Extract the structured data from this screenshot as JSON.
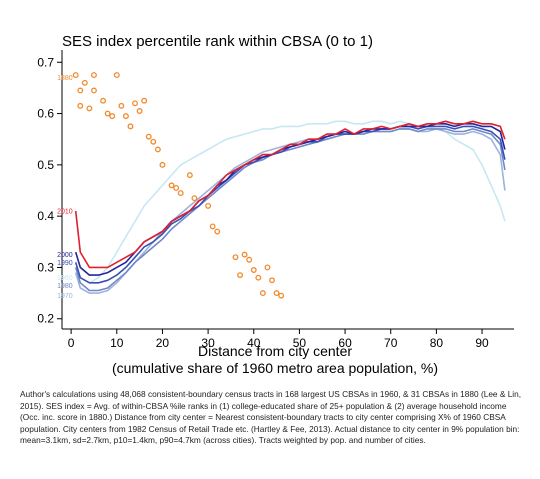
{
  "chart_data": {
    "type": "line",
    "title": "SES index percentile rank within CBSA (0 to 1)",
    "xlabel": "Distance from city center",
    "xlabel_sub": "(cumulative share of 1960 metro area population, %)",
    "ylabel": "",
    "xlim": [
      -2,
      97
    ],
    "ylim": [
      0.18,
      0.72
    ],
    "xticks": [
      0,
      10,
      20,
      30,
      40,
      50,
      60,
      70,
      80,
      90
    ],
    "yticks": [
      0.2,
      0.3,
      0.4,
      0.5,
      0.6,
      0.7
    ],
    "grid": false,
    "legend": "inline labels at left",
    "series": [
      {
        "name": "1880",
        "kind": "scatter",
        "color": "#f08a2c",
        "label_y": 0.67,
        "x": [
          1,
          2,
          2,
          3,
          4,
          5,
          5,
          7,
          8,
          9,
          10,
          11,
          12,
          13,
          14,
          15,
          16,
          17,
          18,
          19,
          20,
          22,
          23,
          24,
          26,
          27,
          30,
          31,
          32,
          36,
          37,
          38,
          39,
          40,
          41,
          42,
          43,
          44,
          45,
          46
        ],
        "y": [
          0.675,
          0.645,
          0.615,
          0.66,
          0.61,
          0.675,
          0.645,
          0.625,
          0.6,
          0.595,
          0.675,
          0.615,
          0.595,
          0.575,
          0.62,
          0.605,
          0.625,
          0.555,
          0.545,
          0.53,
          0.5,
          0.46,
          0.455,
          0.445,
          0.48,
          0.435,
          0.42,
          0.38,
          0.37,
          0.32,
          0.285,
          0.325,
          0.315,
          0.295,
          0.28,
          0.25,
          0.3,
          0.275,
          0.25,
          0.245
        ]
      },
      {
        "name": "2010",
        "kind": "line",
        "color": "#e0202c",
        "label_y": 0.41,
        "x": [
          1,
          2,
          4,
          6,
          8,
          10,
          12,
          14,
          16,
          18,
          20,
          22,
          24,
          26,
          28,
          30,
          32,
          34,
          36,
          38,
          40,
          42,
          44,
          46,
          48,
          50,
          52,
          54,
          56,
          58,
          60,
          62,
          64,
          66,
          68,
          70,
          72,
          74,
          76,
          78,
          80,
          82,
          84,
          86,
          88,
          90,
          92,
          94,
          95
        ],
        "y": [
          0.41,
          0.33,
          0.3,
          0.3,
          0.3,
          0.31,
          0.32,
          0.33,
          0.35,
          0.36,
          0.37,
          0.39,
          0.4,
          0.41,
          0.43,
          0.44,
          0.46,
          0.48,
          0.49,
          0.5,
          0.51,
          0.52,
          0.52,
          0.53,
          0.54,
          0.54,
          0.55,
          0.55,
          0.56,
          0.56,
          0.57,
          0.56,
          0.57,
          0.57,
          0.575,
          0.57,
          0.575,
          0.58,
          0.575,
          0.58,
          0.58,
          0.585,
          0.58,
          0.58,
          0.585,
          0.58,
          0.58,
          0.575,
          0.55
        ]
      },
      {
        "name": "2000",
        "kind": "line",
        "color": "#25259a",
        "label_y": 0.325,
        "x": [
          1,
          2,
          4,
          6,
          8,
          10,
          12,
          14,
          16,
          18,
          20,
          22,
          24,
          26,
          28,
          30,
          32,
          34,
          36,
          38,
          40,
          42,
          44,
          46,
          48,
          50,
          52,
          54,
          56,
          58,
          60,
          62,
          64,
          66,
          68,
          70,
          72,
          74,
          76,
          78,
          80,
          82,
          84,
          86,
          88,
          90,
          92,
          94,
          95
        ],
        "y": [
          0.33,
          0.3,
          0.285,
          0.285,
          0.29,
          0.3,
          0.31,
          0.33,
          0.35,
          0.36,
          0.37,
          0.39,
          0.4,
          0.41,
          0.43,
          0.44,
          0.46,
          0.47,
          0.49,
          0.5,
          0.51,
          0.515,
          0.52,
          0.53,
          0.535,
          0.54,
          0.545,
          0.55,
          0.555,
          0.56,
          0.565,
          0.56,
          0.565,
          0.57,
          0.57,
          0.57,
          0.575,
          0.575,
          0.575,
          0.575,
          0.58,
          0.58,
          0.575,
          0.58,
          0.58,
          0.575,
          0.575,
          0.565,
          0.53
        ]
      },
      {
        "name": "1990",
        "kind": "line",
        "color": "#3a4fb5",
        "label_y": 0.31,
        "x": [
          1,
          2,
          4,
          6,
          8,
          10,
          12,
          14,
          16,
          18,
          20,
          22,
          24,
          26,
          28,
          30,
          32,
          34,
          36,
          38,
          40,
          42,
          44,
          46,
          48,
          50,
          52,
          54,
          56,
          58,
          60,
          62,
          64,
          66,
          68,
          70,
          72,
          74,
          76,
          78,
          80,
          82,
          84,
          86,
          88,
          90,
          92,
          94,
          95
        ],
        "y": [
          0.31,
          0.28,
          0.27,
          0.27,
          0.275,
          0.285,
          0.3,
          0.32,
          0.34,
          0.35,
          0.365,
          0.385,
          0.395,
          0.41,
          0.42,
          0.44,
          0.455,
          0.47,
          0.485,
          0.5,
          0.505,
          0.515,
          0.52,
          0.525,
          0.535,
          0.54,
          0.545,
          0.545,
          0.555,
          0.56,
          0.56,
          0.56,
          0.565,
          0.565,
          0.57,
          0.57,
          0.575,
          0.575,
          0.57,
          0.575,
          0.575,
          0.575,
          0.57,
          0.575,
          0.575,
          0.57,
          0.565,
          0.55,
          0.51
        ]
      },
      {
        "name": "1980",
        "kind": "line",
        "color": "#6f88c8",
        "label_y": 0.265,
        "x": [
          1,
          2,
          4,
          6,
          8,
          10,
          12,
          14,
          16,
          18,
          20,
          22,
          24,
          26,
          28,
          30,
          32,
          34,
          36,
          38,
          40,
          42,
          44,
          46,
          48,
          50,
          52,
          54,
          56,
          58,
          60,
          62,
          64,
          66,
          68,
          70,
          72,
          74,
          76,
          78,
          80,
          82,
          84,
          86,
          88,
          90,
          92,
          94,
          95
        ],
        "y": [
          0.3,
          0.27,
          0.255,
          0.255,
          0.26,
          0.275,
          0.29,
          0.31,
          0.325,
          0.34,
          0.355,
          0.375,
          0.39,
          0.405,
          0.42,
          0.435,
          0.45,
          0.465,
          0.48,
          0.495,
          0.505,
          0.51,
          0.52,
          0.525,
          0.53,
          0.535,
          0.54,
          0.545,
          0.55,
          0.555,
          0.56,
          0.56,
          0.56,
          0.565,
          0.565,
          0.565,
          0.57,
          0.57,
          0.565,
          0.57,
          0.57,
          0.57,
          0.565,
          0.565,
          0.57,
          0.565,
          0.56,
          0.54,
          0.49
        ]
      },
      {
        "name": "1970",
        "kind": "line",
        "color": "#9db3dc",
        "label_y": 0.245,
        "x": [
          1,
          2,
          4,
          6,
          8,
          10,
          12,
          14,
          16,
          18,
          20,
          22,
          24,
          26,
          28,
          30,
          32,
          34,
          36,
          38,
          40,
          42,
          44,
          46,
          48,
          50,
          52,
          54,
          56,
          58,
          60,
          62,
          64,
          66,
          68,
          70,
          72,
          74,
          76,
          78,
          80,
          82,
          84,
          86,
          88,
          90,
          92,
          94,
          95
        ],
        "y": [
          0.29,
          0.26,
          0.25,
          0.25,
          0.255,
          0.27,
          0.29,
          0.31,
          0.33,
          0.35,
          0.37,
          0.39,
          0.405,
          0.42,
          0.435,
          0.45,
          0.465,
          0.48,
          0.495,
          0.505,
          0.515,
          0.525,
          0.53,
          0.535,
          0.54,
          0.545,
          0.55,
          0.55,
          0.555,
          0.56,
          0.56,
          0.56,
          0.565,
          0.565,
          0.565,
          0.565,
          0.57,
          0.57,
          0.565,
          0.565,
          0.57,
          0.565,
          0.56,
          0.56,
          0.565,
          0.56,
          0.55,
          0.52,
          0.45
        ]
      },
      {
        "name": "1960",
        "kind": "line",
        "color": "#c6e8f4",
        "label_y": 0.28,
        "x": [
          1,
          2,
          4,
          6,
          8,
          10,
          12,
          14,
          16,
          18,
          20,
          22,
          24,
          26,
          28,
          30,
          32,
          34,
          36,
          38,
          40,
          42,
          44,
          46,
          48,
          50,
          52,
          54,
          56,
          58,
          60,
          62,
          64,
          66,
          68,
          70,
          72,
          74,
          76,
          78,
          80,
          82,
          84,
          86,
          88,
          90,
          92,
          94,
          95
        ],
        "y": [
          0.3,
          0.28,
          0.27,
          0.28,
          0.3,
          0.33,
          0.36,
          0.39,
          0.42,
          0.44,
          0.46,
          0.48,
          0.5,
          0.51,
          0.52,
          0.53,
          0.54,
          0.55,
          0.555,
          0.56,
          0.565,
          0.57,
          0.57,
          0.575,
          0.575,
          0.575,
          0.58,
          0.58,
          0.58,
          0.585,
          0.585,
          0.58,
          0.58,
          0.585,
          0.585,
          0.58,
          0.585,
          0.58,
          0.575,
          0.575,
          0.57,
          0.565,
          0.55,
          0.54,
          0.53,
          0.5,
          0.46,
          0.42,
          0.39
        ]
      }
    ]
  },
  "caption": "Author's calculations using 48,068 consistent-boundary census tracts in 168 largest US CBSAs in 1960, & 31 CBSAs in 1880 (Lee & Lin, 2015). SES index = Avg. of within-CBSA %ile ranks in (1) college-educated share of 25+ population & (2) average household income (Occ. inc. score in 1880.) Distance from city center = Nearest consistent-boundary tracts to city center comprising X% of 1960 CBSA population. City centers from 1982 Census of Retail Trade etc. (Hartley & Fee, 2013). Actual distance to city center in 9% population bin: mean=3.1km, sd=2.7km, p10=1.4km, p90=4.7km (across cities). Tracts weighted by pop. and number of cities."
}
